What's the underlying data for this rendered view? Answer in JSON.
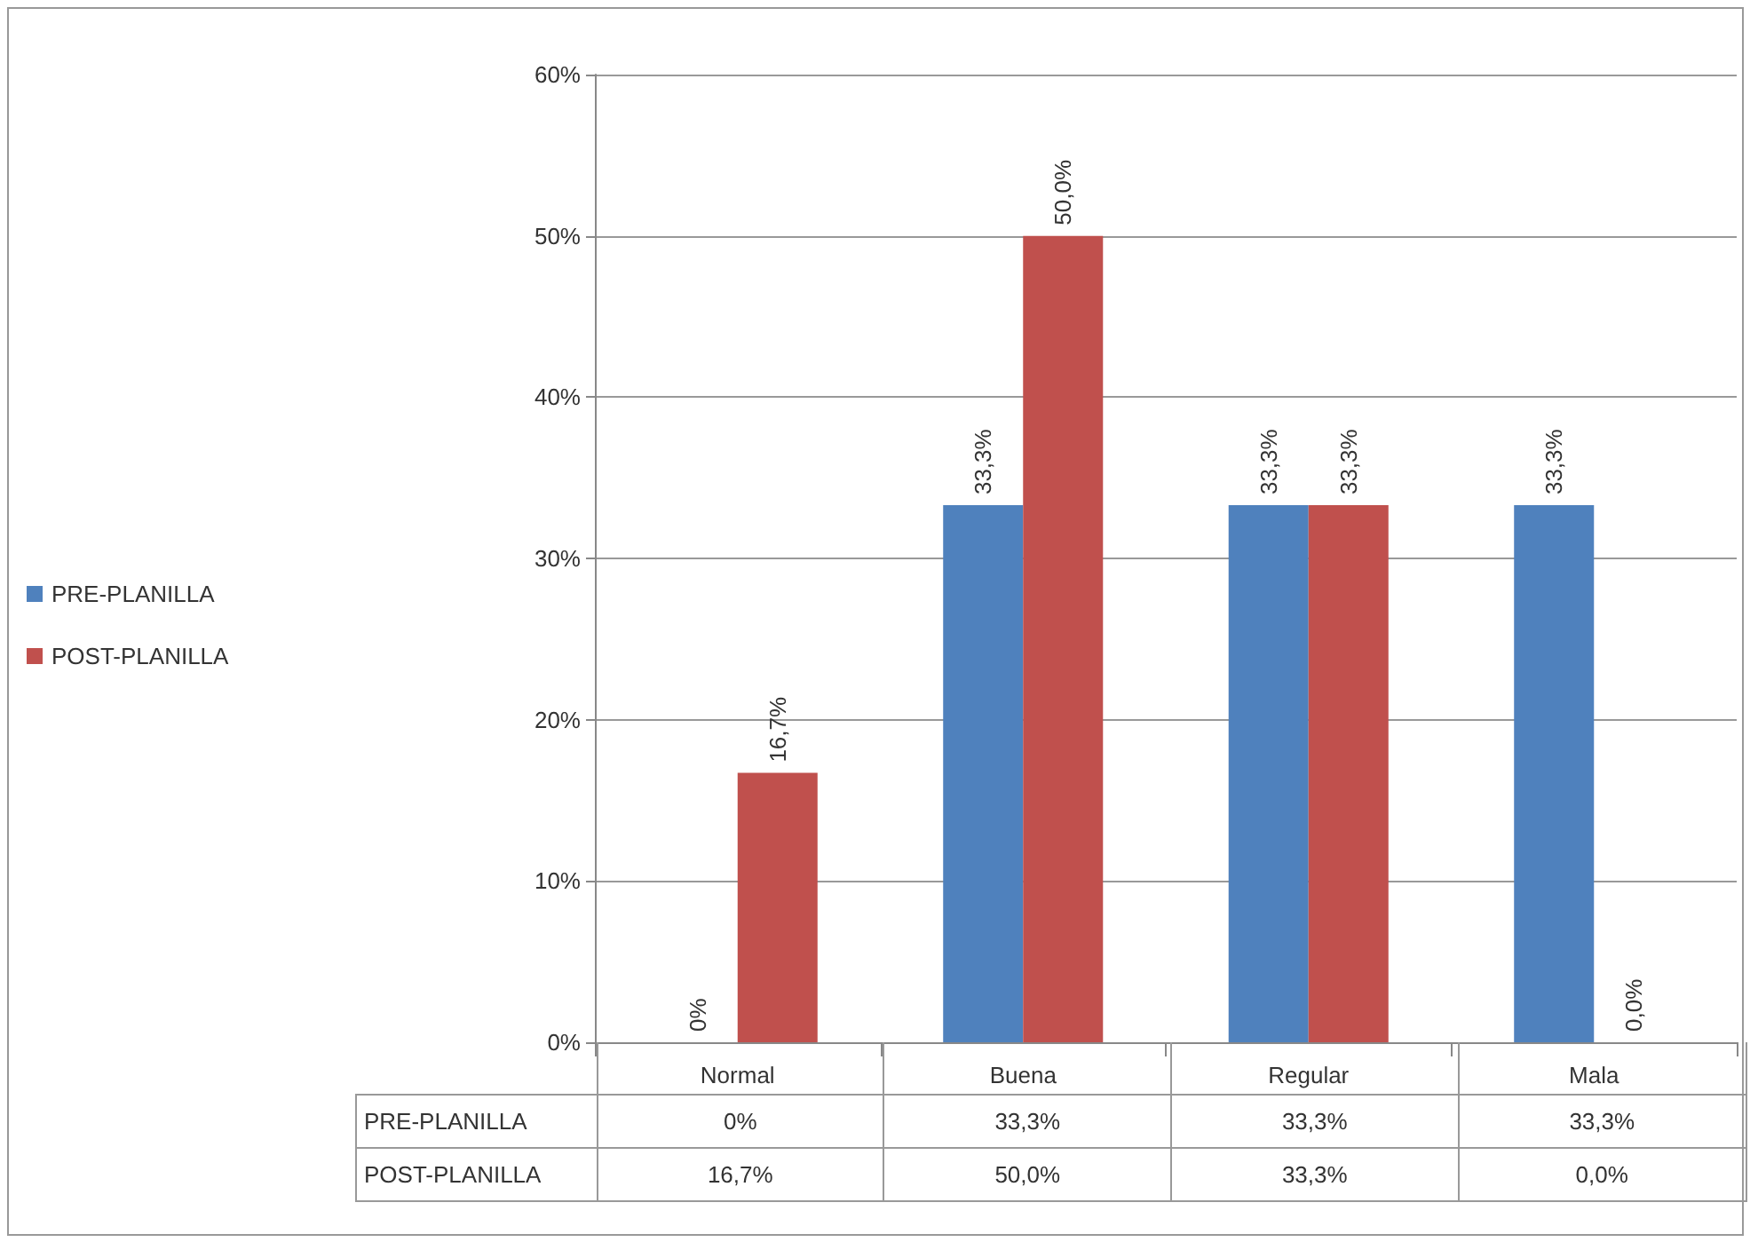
{
  "chart_data": {
    "type": "bar",
    "categories": [
      "Normal",
      "Buena",
      "Regular",
      "Mala"
    ],
    "series": [
      {
        "name": "PRE-PLANILLA",
        "color": "#4f81bd",
        "values": [
          0,
          33.3,
          33.3,
          33.3
        ],
        "value_labels": [
          "0%",
          "33,3%",
          "33,3%",
          "33,3%"
        ]
      },
      {
        "name": "POST-PLANILLA",
        "color": "#c0504d",
        "values": [
          16.7,
          50,
          33.3,
          0
        ],
        "value_labels": [
          "16,7%",
          "50,0%",
          "33,3%",
          "0,0%"
        ]
      }
    ],
    "ylim": [
      0,
      60
    ],
    "yticks": [
      {
        "value": 0,
        "label": "0%"
      },
      {
        "value": 10,
        "label": "10%"
      },
      {
        "value": 20,
        "label": "20%"
      },
      {
        "value": 30,
        "label": "30%"
      },
      {
        "value": 40,
        "label": "40%"
      },
      {
        "value": 50,
        "label": "50%"
      },
      {
        "value": 60,
        "label": "60%"
      }
    ],
    "grid": "y",
    "legend": "left"
  }
}
